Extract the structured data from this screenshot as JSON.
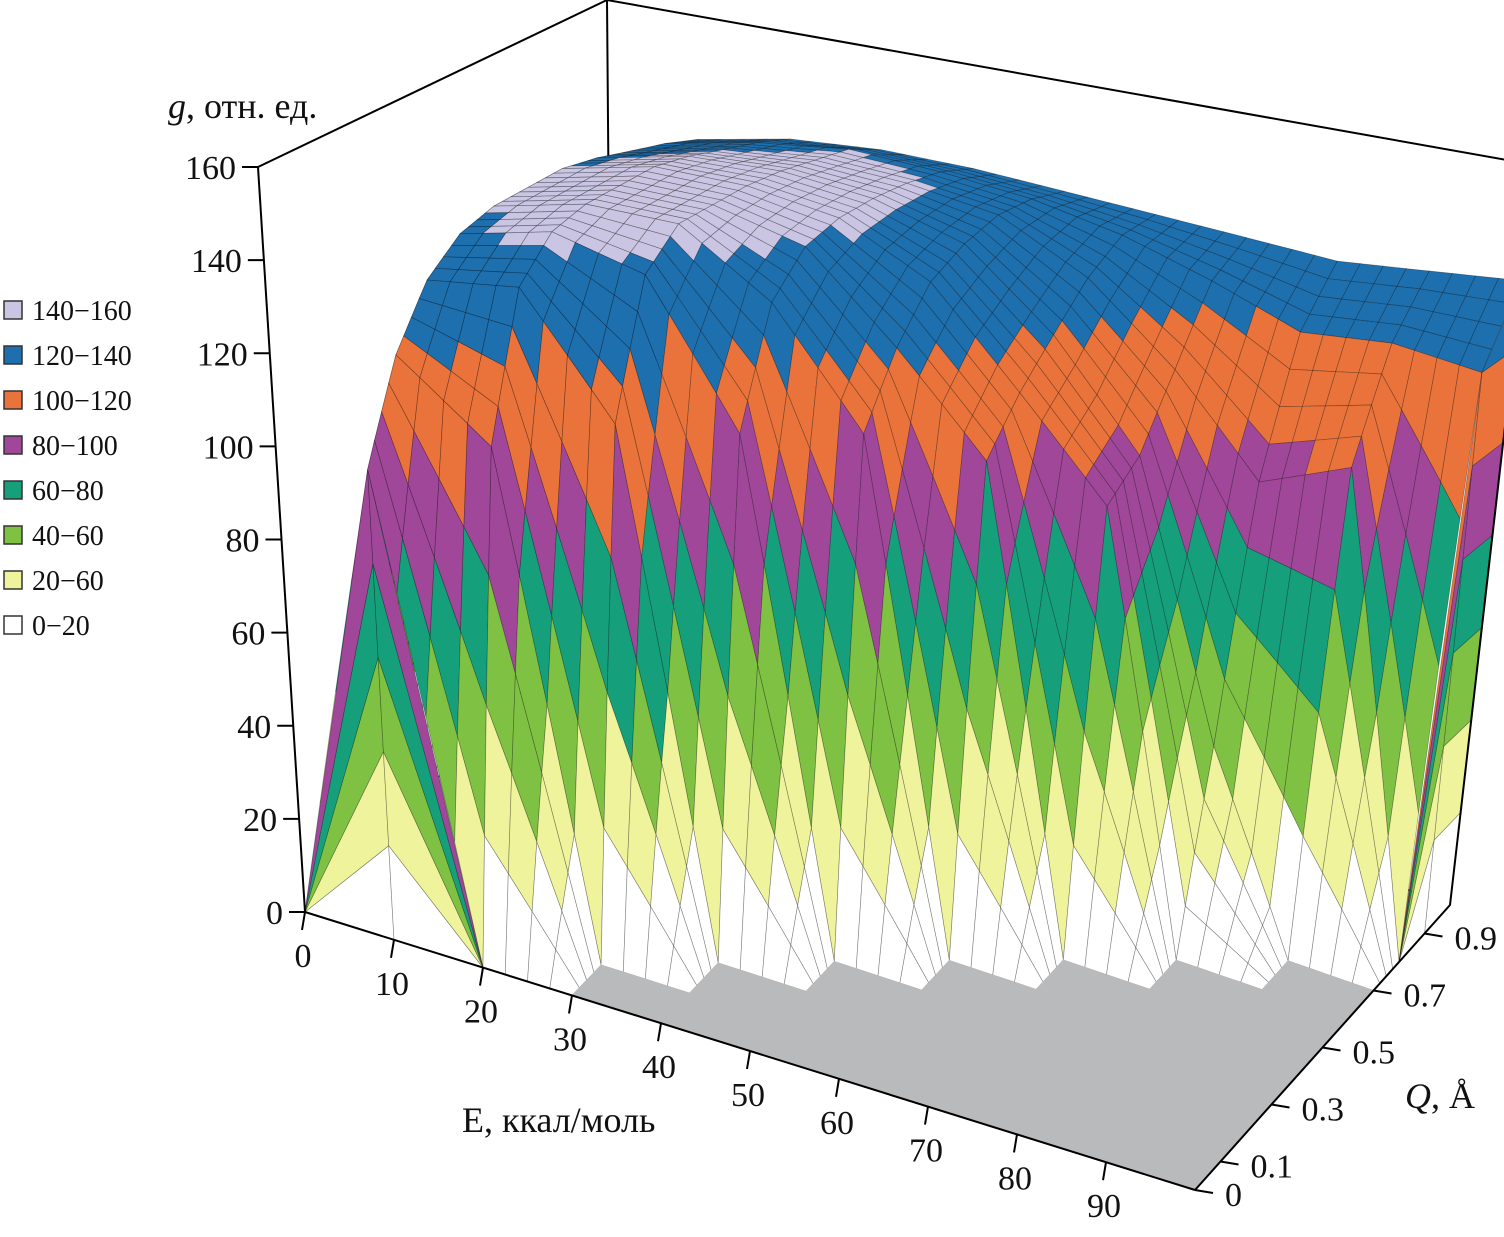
{
  "chart_data": {
    "type": "surface3d",
    "zlabel": {
      "symbol": "g",
      "unit": ", отн. ед."
    },
    "xlabel": "E, ккал/моль",
    "ylabel": {
      "symbol": "Q",
      "unit": ", Å"
    },
    "x": [
      0,
      10,
      20,
      30,
      40,
      50,
      60,
      70,
      80,
      90,
      100
    ],
    "y": [
      0,
      0.1,
      0.2,
      0.3,
      0.4,
      0.5,
      0.6,
      0.7,
      0.8,
      0.9,
      1.0
    ],
    "z": [
      [
        0,
        100,
        0,
        0,
        0,
        0,
        0,
        0,
        0,
        0,
        0
      ],
      [
        0,
        120,
        105,
        0,
        0,
        0,
        0,
        0,
        0,
        0,
        0
      ],
      [
        0,
        132,
        135,
        110,
        0,
        0,
        0,
        0,
        0,
        0,
        0
      ],
      [
        0,
        138,
        143,
        138,
        108,
        0,
        0,
        0,
        0,
        0,
        0
      ],
      [
        0,
        140,
        145,
        145,
        132,
        108,
        0,
        0,
        0,
        0,
        0
      ],
      [
        0,
        140,
        145,
        145,
        140,
        122,
        102,
        0,
        0,
        0,
        0
      ],
      [
        0,
        140,
        145,
        145,
        142,
        132,
        112,
        92,
        0,
        0,
        0
      ],
      [
        0,
        138,
        143,
        144,
        142,
        136,
        120,
        98,
        40,
        0,
        0
      ],
      [
        0,
        135,
        140,
        142,
        141,
        138,
        128,
        112,
        92,
        100,
        0
      ],
      [
        0,
        132,
        137,
        140,
        139,
        137,
        133,
        127,
        120,
        122,
        120
      ],
      [
        0,
        128,
        133,
        135,
        135,
        134,
        133,
        132,
        131,
        133,
        135
      ]
    ],
    "xlim": [
      0,
      100
    ],
    "ylim": [
      0,
      1
    ],
    "zlim": [
      0,
      160
    ],
    "xticks": [
      0,
      10,
      20,
      30,
      40,
      50,
      60,
      70,
      80,
      90
    ],
    "yticks": [
      0,
      0.1,
      0.3,
      0.5,
      0.7,
      0.9
    ],
    "zticks": [
      0,
      20,
      40,
      60,
      80,
      100,
      120,
      140,
      160
    ],
    "floor_color": "#b9babb",
    "legend": [
      {
        "label": "140−160",
        "color": "#c9c5e2"
      },
      {
        "label": "120−140",
        "color": "#1d6fae"
      },
      {
        "label": "100−120",
        "color": "#e9733a"
      },
      {
        "label": "80−100",
        "color": "#a0479a"
      },
      {
        "label": "60−80",
        "color": "#15a07b"
      },
      {
        "label": "40−60",
        "color": "#7fc143"
      },
      {
        "label": "20−60",
        "color": "#eef39c"
      },
      {
        "label": "0−20",
        "color": "#ffffff"
      }
    ]
  }
}
